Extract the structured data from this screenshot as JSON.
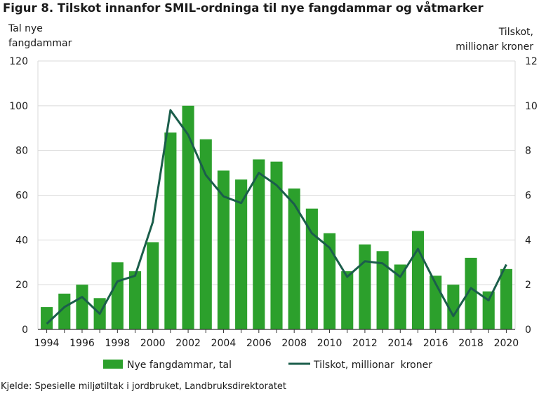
{
  "title": "Figur 8. Tilskot innanfor SMIL-ordninga til nye fangdammar og våtmarker",
  "source": "Kjelde: Spesielle miljøtiltak i jordbruket,  Landbruksdirektoratet",
  "colors": {
    "bar": "#2ca02c",
    "line": "#1b5e4b",
    "grid": "#d9d9d9",
    "axis": "#333333"
  },
  "chart_data": {
    "type": "bar",
    "x": [
      1994,
      1995,
      1996,
      1997,
      1998,
      1999,
      2000,
      2001,
      2002,
      2003,
      2004,
      2005,
      2006,
      2007,
      2008,
      2009,
      2010,
      2011,
      2012,
      2013,
      2014,
      2015,
      2016,
      2017,
      2018,
      2019,
      2020
    ],
    "x_tick_labels": [
      "1994",
      "1996",
      "1998",
      "2000",
      "2002",
      "2004",
      "2006",
      "2008",
      "2010",
      "2012",
      "2014",
      "2016",
      "2018",
      "2020"
    ],
    "ylabel_left": [
      "Tal nye",
      "fangdammar"
    ],
    "ylabel_right": [
      "Tilskot,",
      "millionar kroner"
    ],
    "ylim_left": [
      0,
      120
    ],
    "ylim_right": [
      0,
      12
    ],
    "y_ticks_left": [
      "0",
      "20",
      "40",
      "60",
      "80",
      "100",
      "120"
    ],
    "y_ticks_right": [
      "0",
      "2",
      "4",
      "6",
      "8",
      "10",
      "12"
    ],
    "grid": true,
    "legend_position": "bottom",
    "series": [
      {
        "name": "Nye fangdammar, tal",
        "type": "bar",
        "axis": "left",
        "values": [
          10,
          16,
          20,
          14,
          30,
          26,
          39,
          88,
          100,
          85,
          71,
          67,
          76,
          75,
          63,
          54,
          43,
          26,
          38,
          35,
          29,
          44,
          24,
          20,
          32,
          17,
          27
        ]
      },
      {
        "name": "Tilskot, millionar  kroner",
        "type": "line",
        "axis": "right",
        "values": [
          0.25,
          1.0,
          1.45,
          0.7,
          2.15,
          2.4,
          4.8,
          9.8,
          8.7,
          6.9,
          5.95,
          5.65,
          7.0,
          6.45,
          5.6,
          4.3,
          3.65,
          2.35,
          3.05,
          2.95,
          2.35,
          3.6,
          2.05,
          0.6,
          1.85,
          1.3,
          2.9
        ]
      }
    ]
  }
}
